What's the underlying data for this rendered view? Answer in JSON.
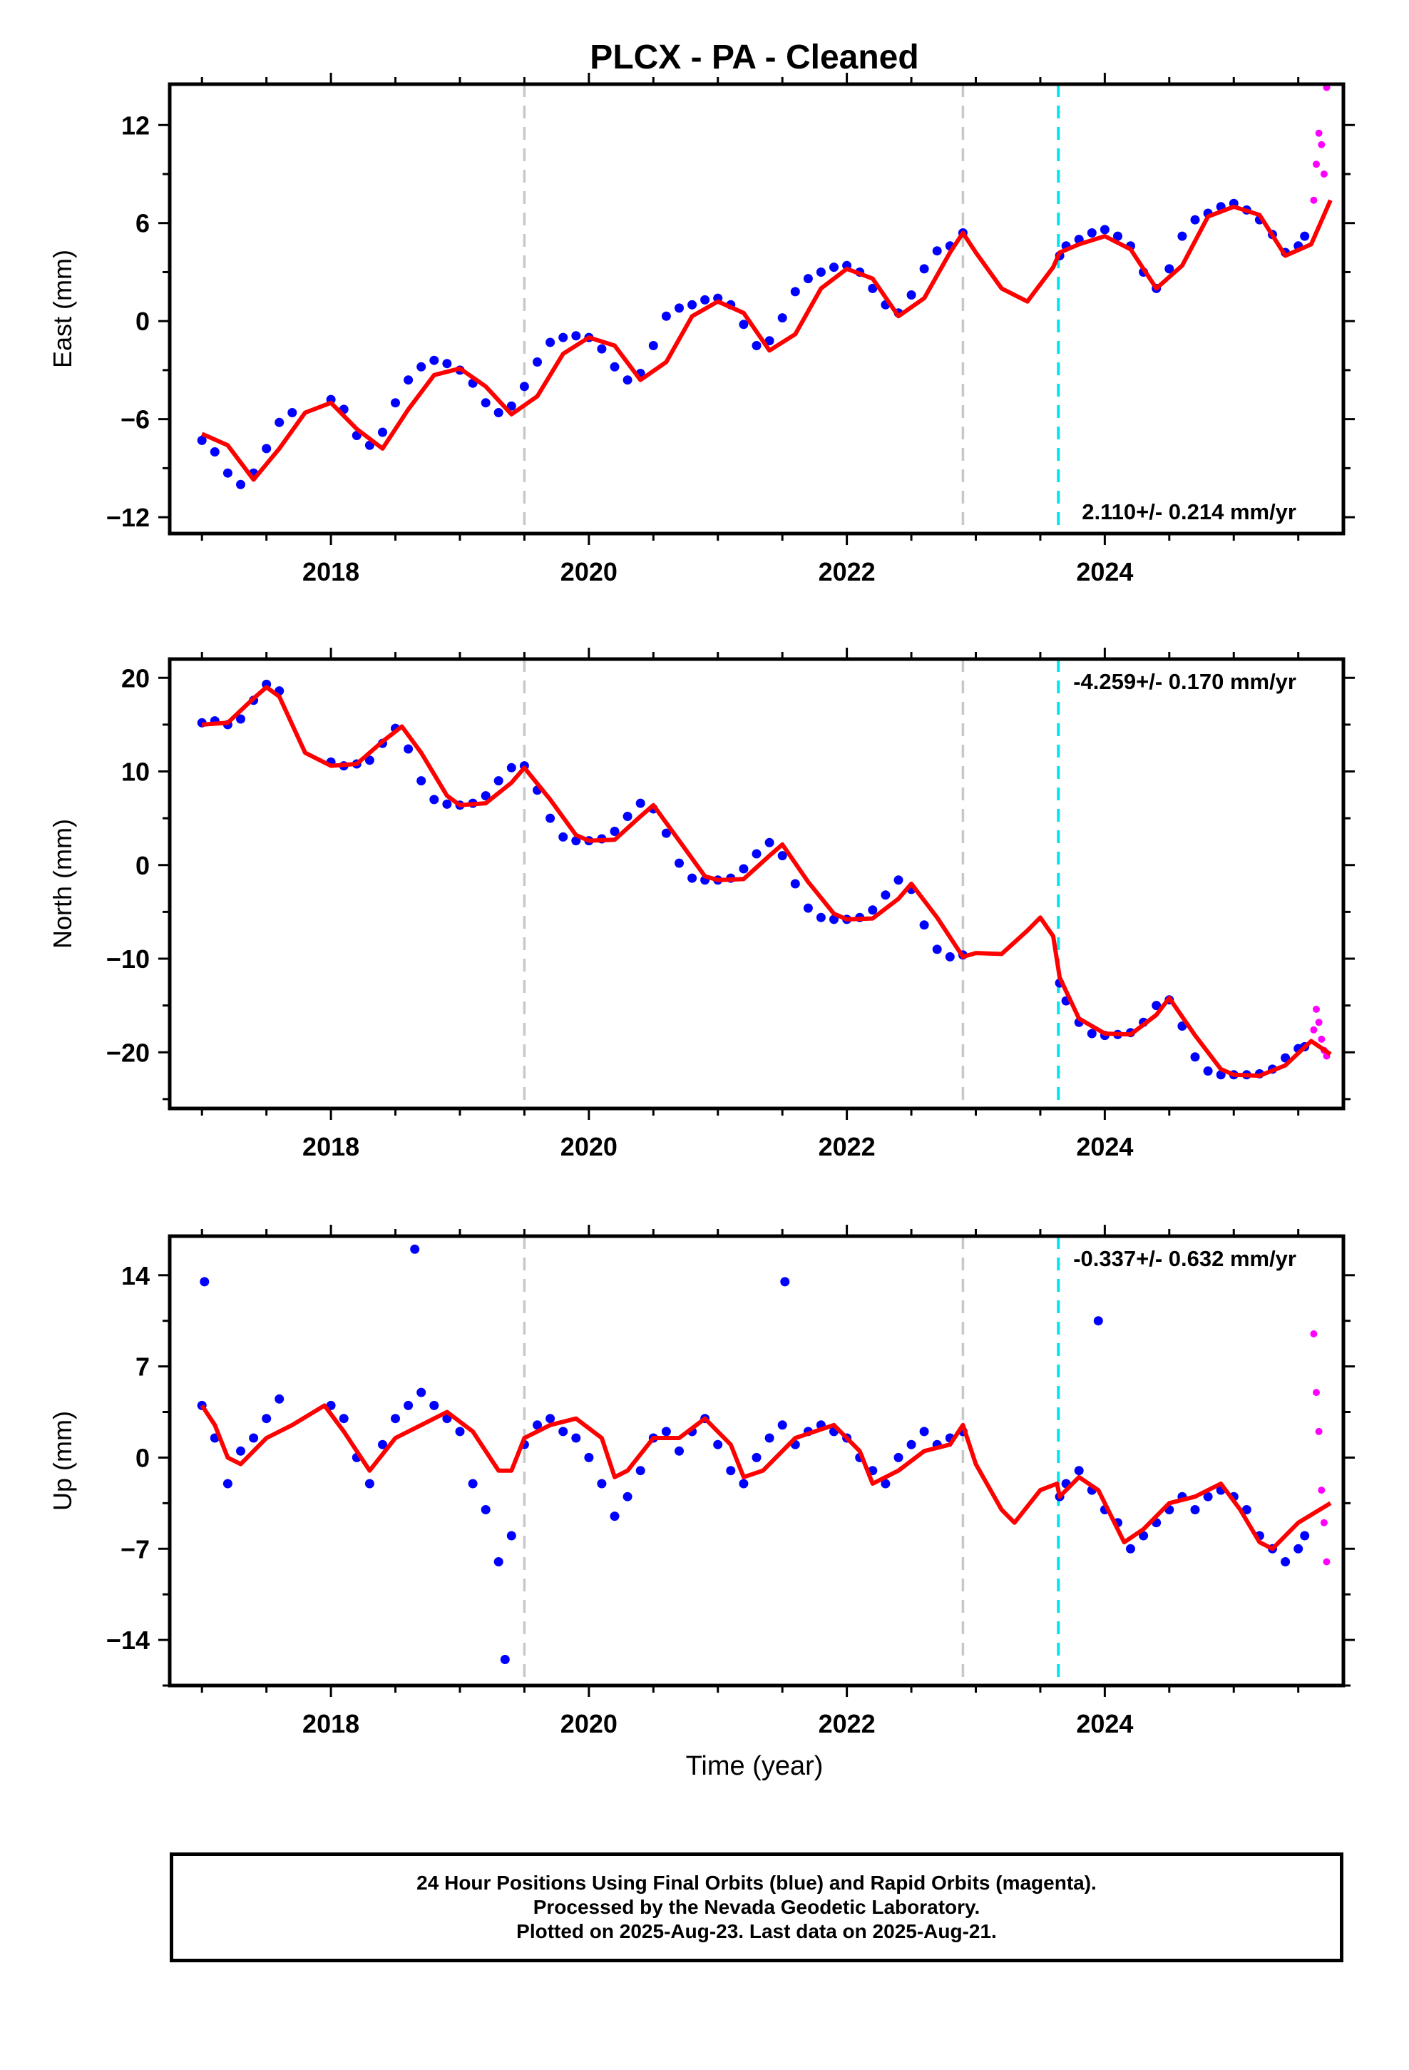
{
  "title": "PLCX  - PA - Cleaned",
  "xlabel": "Time (year)",
  "caption": [
    "24 Hour Positions Using Final Orbits (blue) and Rapid Orbits (magenta).",
    "Processed by the Nevada Geodetic Laboratory.",
    "Plotted on 2025-Aug-23. Last data on 2025-Aug-21."
  ],
  "colors": {
    "final_orbits": "#0000ff",
    "rapid_orbits": "#ff00ff",
    "model_fit": "#ff0000",
    "equipment_change": "#c8c8c8",
    "earthquake_event": "#00e5ee"
  },
  "chart_data": [
    {
      "type": "scatter",
      "panel": "east",
      "ylabel": "East (mm)",
      "annotation": "2.110+/- 0.214 mm/yr",
      "xlim": [
        2016.75,
        2025.85
      ],
      "ylim": [
        -13,
        14.5
      ],
      "xticks": [
        2018,
        2020,
        2022,
        2024
      ],
      "yticks": [
        -12,
        -6,
        0,
        6,
        12
      ],
      "grid": false,
      "vertical_lines": [
        {
          "x": 2019.5,
          "style": "dashed",
          "color": "gray"
        },
        {
          "x": 2022.9,
          "style": "dashed",
          "color": "gray"
        },
        {
          "x": 2023.64,
          "style": "dashed",
          "color": "cyan"
        }
      ],
      "series": [
        {
          "kind": "final_orbits",
          "x": [
            2017.0,
            2017.1,
            2017.2,
            2017.3,
            2017.4,
            2017.5,
            2017.6,
            2017.7,
            2018.0,
            2018.1,
            2018.2,
            2018.3,
            2018.4,
            2018.5,
            2018.6,
            2018.7,
            2018.8,
            2018.9,
            2019.0,
            2019.1,
            2019.2,
            2019.3,
            2019.4,
            2019.5,
            2019.6,
            2019.7,
            2019.8,
            2019.9,
            2020.0,
            2020.1,
            2020.2,
            2020.3,
            2020.4,
            2020.5,
            2020.6,
            2020.7,
            2020.8,
            2020.9,
            2021.0,
            2021.1,
            2021.2,
            2021.3,
            2021.4,
            2021.5,
            2021.6,
            2021.7,
            2021.8,
            2021.9,
            2022.0,
            2022.1,
            2022.2,
            2022.3,
            2022.4,
            2022.5,
            2022.6,
            2022.7,
            2022.8,
            2022.9,
            2023.65,
            2023.7,
            2023.8,
            2023.9,
            2024.0,
            2024.1,
            2024.2,
            2024.3,
            2024.4,
            2024.5,
            2024.6,
            2024.7,
            2024.8,
            2024.9,
            2025.0,
            2025.1,
            2025.2,
            2025.3,
            2025.4,
            2025.5,
            2025.55
          ],
          "y": [
            -7.3,
            -8.0,
            -9.3,
            -10.0,
            -9.3,
            -7.8,
            -6.2,
            -5.6,
            -4.8,
            -5.4,
            -7.0,
            -7.6,
            -6.8,
            -5.0,
            -3.6,
            -2.8,
            -2.4,
            -2.6,
            -3.0,
            -3.8,
            -5.0,
            -5.6,
            -5.2,
            -4.0,
            -2.5,
            -1.3,
            -1.0,
            -0.9,
            -1.0,
            -1.7,
            -2.8,
            -3.6,
            -3.2,
            -1.5,
            0.3,
            0.8,
            1.0,
            1.3,
            1.4,
            1.0,
            -0.2,
            -1.5,
            -1.2,
            0.2,
            1.8,
            2.6,
            3.0,
            3.3,
            3.4,
            3.0,
            2.0,
            1.0,
            0.5,
            1.6,
            3.2,
            4.3,
            4.6,
            5.4,
            4.0,
            4.6,
            5.0,
            5.4,
            5.6,
            5.2,
            4.6,
            3.0,
            2.0,
            3.2,
            5.2,
            6.2,
            6.6,
            7.0,
            7.2,
            6.8,
            6.2,
            5.3,
            4.2,
            4.6,
            5.2
          ]
        },
        {
          "kind": "rapid_orbits",
          "x": [
            2025.62,
            2025.64,
            2025.66,
            2025.68,
            2025.7,
            2025.72
          ],
          "y": [
            7.4,
            9.6,
            11.5,
            10.8,
            9.0,
            14.3
          ]
        },
        {
          "kind": "model_fit",
          "x": [
            2017.0,
            2017.2,
            2017.4,
            2017.6,
            2017.8,
            2018.0,
            2018.2,
            2018.4,
            2018.6,
            2018.8,
            2019.0,
            2019.2,
            2019.4,
            2019.6,
            2019.8,
            2020.0,
            2020.2,
            2020.4,
            2020.6,
            2020.8,
            2021.0,
            2021.2,
            2021.4,
            2021.6,
            2021.8,
            2022.0,
            2022.2,
            2022.4,
            2022.6,
            2022.8,
            2022.9,
            2023.0,
            2023.2,
            2023.4,
            2023.6,
            2023.65,
            2023.8,
            2024.0,
            2024.2,
            2024.4,
            2024.6,
            2024.8,
            2025.0,
            2025.2,
            2025.4,
            2025.6,
            2025.75
          ],
          "y": [
            -6.9,
            -7.6,
            -9.7,
            -7.8,
            -5.6,
            -5.0,
            -6.6,
            -7.8,
            -5.4,
            -3.3,
            -2.9,
            -4.0,
            -5.7,
            -4.6,
            -2.0,
            -1.0,
            -1.5,
            -3.6,
            -2.5,
            0.3,
            1.2,
            0.5,
            -1.8,
            -0.8,
            2.0,
            3.2,
            2.6,
            0.3,
            1.4,
            4.2,
            5.4,
            4.2,
            2.0,
            1.2,
            3.3,
            4.2,
            4.7,
            5.2,
            4.4,
            2.0,
            3.4,
            6.4,
            7.0,
            6.5,
            4.0,
            4.7,
            7.4
          ]
        }
      ]
    },
    {
      "type": "scatter",
      "panel": "north",
      "ylabel": "North (mm)",
      "annotation": "-4.259+/- 0.170 mm/yr",
      "xlim": [
        2016.75,
        2025.85
      ],
      "ylim": [
        -26,
        22
      ],
      "xticks": [
        2018,
        2020,
        2022,
        2024
      ],
      "yticks": [
        -20,
        -10,
        0,
        10,
        20
      ],
      "grid": false,
      "vertical_lines": [
        {
          "x": 2019.5,
          "style": "dashed",
          "color": "gray"
        },
        {
          "x": 2022.9,
          "style": "dashed",
          "color": "gray"
        },
        {
          "x": 2023.64,
          "style": "dashed",
          "color": "cyan"
        }
      ],
      "series": [
        {
          "kind": "final_orbits",
          "x": [
            2017.0,
            2017.1,
            2017.2,
            2017.3,
            2017.4,
            2017.5,
            2017.6,
            2018.0,
            2018.1,
            2018.2,
            2018.3,
            2018.4,
            2018.5,
            2018.6,
            2018.7,
            2018.8,
            2018.9,
            2019.0,
            2019.1,
            2019.2,
            2019.3,
            2019.4,
            2019.5,
            2019.6,
            2019.7,
            2019.8,
            2019.9,
            2020.0,
            2020.1,
            2020.2,
            2020.3,
            2020.4,
            2020.5,
            2020.6,
            2020.7,
            2020.8,
            2020.9,
            2021.0,
            2021.1,
            2021.2,
            2021.3,
            2021.4,
            2021.5,
            2021.6,
            2021.7,
            2021.8,
            2021.9,
            2022.0,
            2022.1,
            2022.2,
            2022.3,
            2022.4,
            2022.5,
            2022.6,
            2022.7,
            2022.8,
            2022.9,
            2023.65,
            2023.7,
            2023.8,
            2023.9,
            2024.0,
            2024.1,
            2024.2,
            2024.3,
            2024.4,
            2024.5,
            2024.6,
            2024.7,
            2024.8,
            2024.9,
            2025.0,
            2025.1,
            2025.2,
            2025.3,
            2025.4,
            2025.5,
            2025.55
          ],
          "y": [
            15.2,
            15.4,
            15.0,
            15.6,
            17.6,
            19.3,
            18.6,
            11.0,
            10.6,
            10.8,
            11.2,
            13.0,
            14.6,
            12.4,
            9.0,
            7.0,
            6.5,
            6.4,
            6.6,
            7.4,
            9.0,
            10.4,
            10.6,
            8.0,
            5.0,
            3.0,
            2.6,
            2.6,
            2.8,
            3.6,
            5.2,
            6.6,
            6.0,
            3.4,
            0.2,
            -1.4,
            -1.6,
            -1.6,
            -1.4,
            -0.4,
            1.2,
            2.4,
            1.0,
            -2.0,
            -4.6,
            -5.6,
            -5.8,
            -5.8,
            -5.6,
            -4.8,
            -3.2,
            -1.6,
            -2.6,
            -6.4,
            -9.0,
            -9.8,
            -9.6,
            -12.6,
            -14.5,
            -16.8,
            -18.0,
            -18.2,
            -18.1,
            -17.9,
            -16.8,
            -15.0,
            -14.4,
            -17.2,
            -20.5,
            -22.0,
            -22.4,
            -22.4,
            -22.4,
            -22.3,
            -21.8,
            -20.6,
            -19.6,
            -19.4
          ]
        },
        {
          "kind": "rapid_orbits",
          "x": [
            2025.62,
            2025.64,
            2025.66,
            2025.68,
            2025.7,
            2025.72
          ],
          "y": [
            -17.6,
            -15.4,
            -16.8,
            -18.6,
            -19.8,
            -20.4
          ]
        },
        {
          "kind": "model_fit",
          "x": [
            2017.0,
            2017.2,
            2017.4,
            2017.5,
            2017.6,
            2017.8,
            2018.0,
            2018.2,
            2018.4,
            2018.55,
            2018.7,
            2018.9,
            2019.0,
            2019.2,
            2019.4,
            2019.5,
            2019.7,
            2019.9,
            2020.0,
            2020.2,
            2020.4,
            2020.5,
            2020.7,
            2020.9,
            2021.0,
            2021.2,
            2021.4,
            2021.5,
            2021.7,
            2021.9,
            2022.0,
            2022.2,
            2022.4,
            2022.5,
            2022.7,
            2022.9,
            2023.0,
            2023.2,
            2023.4,
            2023.5,
            2023.6,
            2023.65,
            2023.8,
            2024.0,
            2024.2,
            2024.4,
            2024.5,
            2024.7,
            2024.9,
            2025.0,
            2025.2,
            2025.4,
            2025.6,
            2025.75
          ],
          "y": [
            15.0,
            15.2,
            17.8,
            19.0,
            18.0,
            12.0,
            10.6,
            10.8,
            13.2,
            14.8,
            12.0,
            7.4,
            6.4,
            6.6,
            8.8,
            10.4,
            7.0,
            3.2,
            2.6,
            2.7,
            5.2,
            6.4,
            2.6,
            -1.2,
            -1.6,
            -1.5,
            1.0,
            2.2,
            -1.8,
            -5.2,
            -5.8,
            -5.7,
            -3.6,
            -2.0,
            -5.6,
            -9.8,
            -9.4,
            -9.5,
            -7.0,
            -5.6,
            -7.6,
            -12.0,
            -16.4,
            -18.0,
            -18.1,
            -16.0,
            -14.2,
            -18.2,
            -21.8,
            -22.4,
            -22.5,
            -21.4,
            -18.8,
            -20.2
          ]
        }
      ]
    },
    {
      "type": "scatter",
      "panel": "up",
      "ylabel": "Up (mm)",
      "annotation": "-0.337+/- 0.632 mm/yr",
      "xlim": [
        2016.75,
        2025.85
      ],
      "ylim": [
        -17.5,
        17
      ],
      "xticks": [
        2018,
        2020,
        2022,
        2024
      ],
      "yticks": [
        -14,
        -7,
        0,
        7,
        14
      ],
      "grid": false,
      "vertical_lines": [
        {
          "x": 2019.5,
          "style": "dashed",
          "color": "gray"
        },
        {
          "x": 2022.9,
          "style": "dashed",
          "color": "gray"
        },
        {
          "x": 2023.64,
          "style": "dashed",
          "color": "cyan"
        }
      ],
      "series": [
        {
          "kind": "final_orbits",
          "x": [
            2017.0,
            2017.02,
            2017.1,
            2017.2,
            2017.3,
            2017.4,
            2017.5,
            2017.6,
            2018.0,
            2018.1,
            2018.2,
            2018.3,
            2018.4,
            2018.5,
            2018.6,
            2018.65,
            2018.7,
            2018.8,
            2018.9,
            2019.0,
            2019.1,
            2019.2,
            2019.3,
            2019.35,
            2019.4,
            2019.5,
            2019.6,
            2019.7,
            2019.8,
            2019.9,
            2020.0,
            2020.1,
            2020.2,
            2020.3,
            2020.4,
            2020.5,
            2020.6,
            2020.7,
            2020.8,
            2020.9,
            2021.0,
            2021.1,
            2021.2,
            2021.3,
            2021.4,
            2021.5,
            2021.52,
            2021.6,
            2021.7,
            2021.8,
            2021.9,
            2022.0,
            2022.1,
            2022.2,
            2022.3,
            2022.4,
            2022.5,
            2022.6,
            2022.7,
            2022.8,
            2022.9,
            2023.65,
            2023.7,
            2023.8,
            2023.9,
            2023.95,
            2024.0,
            2024.1,
            2024.2,
            2024.3,
            2024.4,
            2024.5,
            2024.6,
            2024.7,
            2024.8,
            2024.9,
            2025.0,
            2025.1,
            2025.2,
            2025.3,
            2025.4,
            2025.5,
            2025.55
          ],
          "y": [
            4.0,
            13.5,
            1.5,
            -2.0,
            0.5,
            1.5,
            3.0,
            4.5,
            4.0,
            3.0,
            0.0,
            -2.0,
            1.0,
            3.0,
            4.0,
            16.0,
            5.0,
            4.0,
            3.0,
            2.0,
            -2.0,
            -4.0,
            -8.0,
            -15.5,
            -6.0,
            1.0,
            2.5,
            3.0,
            2.0,
            1.5,
            0.0,
            -2.0,
            -4.5,
            -3.0,
            -1.0,
            1.5,
            2.0,
            0.5,
            2.0,
            3.0,
            1.0,
            -1.0,
            -2.0,
            0.0,
            1.5,
            2.5,
            13.5,
            1.0,
            2.0,
            2.5,
            2.0,
            1.5,
            0.0,
            -1.0,
            -2.0,
            0.0,
            1.0,
            2.0,
            1.0,
            1.5,
            2.0,
            -3.0,
            -2.0,
            -1.0,
            -2.5,
            10.5,
            -4.0,
            -5.0,
            -7.0,
            -6.0,
            -5.0,
            -4.0,
            -3.0,
            -4.0,
            -3.0,
            -2.5,
            -3.0,
            -4.0,
            -6.0,
            -7.0,
            -8.0,
            -7.0,
            -6.0
          ]
        },
        {
          "kind": "rapid_orbits",
          "x": [
            2025.62,
            2025.64,
            2025.66,
            2025.68,
            2025.7,
            2025.72
          ],
          "y": [
            9.5,
            5.0,
            2.0,
            -2.5,
            -5.0,
            -8.0
          ]
        },
        {
          "kind": "model_fit",
          "x": [
            2017.0,
            2017.1,
            2017.2,
            2017.3,
            2017.5,
            2017.7,
            2017.95,
            2018.1,
            2018.3,
            2018.5,
            2018.7,
            2018.9,
            2019.1,
            2019.3,
            2019.4,
            2019.5,
            2019.7,
            2019.9,
            2020.1,
            2020.2,
            2020.3,
            2020.5,
            2020.7,
            2020.9,
            2021.1,
            2021.2,
            2021.35,
            2021.6,
            2021.9,
            2022.1,
            2022.2,
            2022.4,
            2022.6,
            2022.8,
            2022.9,
            2023.0,
            2023.2,
            2023.3,
            2023.5,
            2023.63,
            2023.65,
            2023.8,
            2023.95,
            2024.15,
            2024.3,
            2024.5,
            2024.7,
            2024.9,
            2025.05,
            2025.2,
            2025.3,
            2025.5,
            2025.75
          ],
          "y": [
            4.0,
            2.5,
            0.0,
            -0.5,
            1.5,
            2.5,
            4.0,
            2.0,
            -1.0,
            1.5,
            2.5,
            3.5,
            2.0,
            -1.0,
            -1.0,
            1.5,
            2.5,
            3.0,
            1.5,
            -1.5,
            -1.0,
            1.5,
            1.5,
            3.0,
            1.0,
            -1.5,
            -1.0,
            1.5,
            2.5,
            0.5,
            -2.0,
            -1.0,
            0.5,
            1.0,
            2.5,
            -0.5,
            -4.0,
            -5.0,
            -2.5,
            -2.0,
            -3.0,
            -1.5,
            -2.5,
            -6.5,
            -5.5,
            -3.5,
            -3.0,
            -2.0,
            -4.0,
            -6.5,
            -7.0,
            -5.0,
            -3.5
          ]
        }
      ]
    }
  ]
}
